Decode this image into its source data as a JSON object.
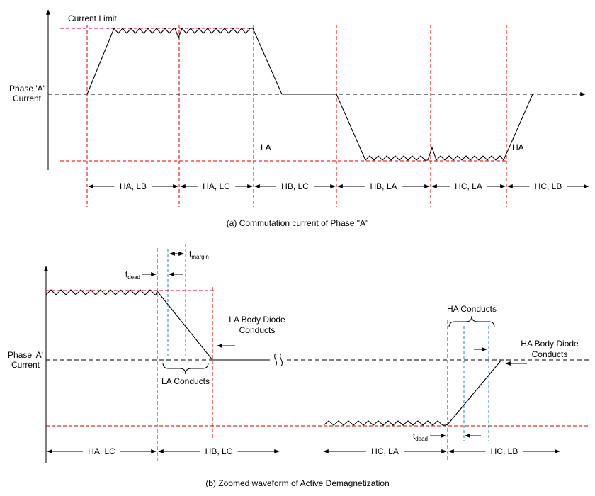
{
  "colors": {
    "waveform": "#000000",
    "limit_line": "#d40000",
    "timing_line": "#2980b9"
  },
  "top": {
    "current_limit_label": "Current Limit",
    "y_axis_label_line1": "Phase 'A'",
    "y_axis_label_line2": "Current",
    "la_label": "LA",
    "ha_label": "HA",
    "segments": [
      "HA, LB",
      "HA, LC",
      "HB, LC",
      "HB, LA",
      "HC, LA",
      "HC, LB"
    ],
    "caption": "(a) Commutation current of Phase \"A\""
  },
  "bottom": {
    "y_axis_label_line1": "Phase 'A'",
    "y_axis_label_line2": "Current",
    "t_margin": {
      "base": "t",
      "sub": "margin"
    },
    "t_dead_left": {
      "base": "t",
      "sub": "dead"
    },
    "t_dead_right": {
      "base": "t",
      "sub": "dead"
    },
    "la_body_diode_line1": "LA Body Diode",
    "la_body_diode_line2": "Conducts",
    "la_conducts_label": "LA Conducts",
    "ha_conducts_label": "HA Conducts",
    "ha_body_diode_line1": "HA Body Diode",
    "ha_body_diode_line2": "Conducts",
    "segments": [
      "HA, LC",
      "HB, LC",
      "HC, LA",
      "HC, LB"
    ],
    "caption": "(b) Zoomed waveform of Active Demagnetization"
  }
}
